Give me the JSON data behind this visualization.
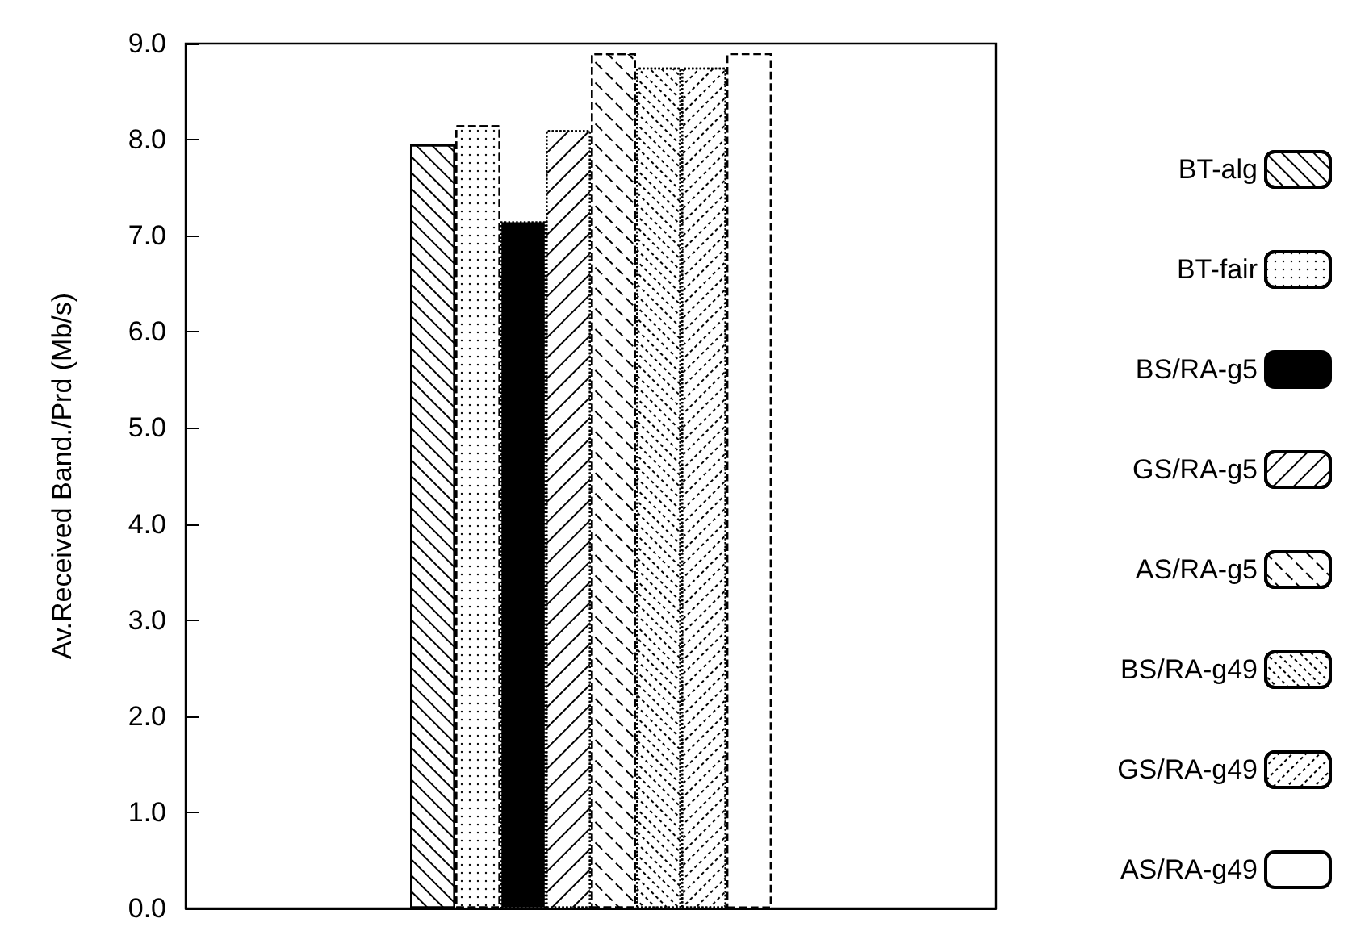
{
  "chart_data": {
    "type": "bar",
    "ylabel": "Av.Received Band./Prd (Mb/s)",
    "categories": [
      null
    ],
    "series": [
      {
        "name": "BT-alg",
        "color": "#ffffff",
        "values": [
          7.95
        ]
      },
      {
        "name": "BT-fair",
        "color": "#ffffff",
        "values": [
          8.15
        ]
      },
      {
        "name": "BS/RA-g5",
        "color": "#000000",
        "values": [
          7.15
        ]
      },
      {
        "name": "GS/RA-g5",
        "color": "#ffffff",
        "values": [
          8.1
        ]
      },
      {
        "name": "AS/RA-g5",
        "color": "#ffffff",
        "values": [
          8.9
        ]
      },
      {
        "name": "BS/RA-g49",
        "color": "#ffffff",
        "values": [
          8.75
        ]
      },
      {
        "name": "GS/RA-g49",
        "color": "#ffffff",
        "values": [
          8.75
        ]
      },
      {
        "name": "AS/RA-g49",
        "color": "#ffffff",
        "values": [
          8.9
        ]
      }
    ],
    "ylim": [
      0,
      9
    ],
    "yticks": [
      {
        "value": 0,
        "label": "0.0"
      },
      {
        "value": 1,
        "label": "1.0"
      },
      {
        "value": 2,
        "label": "2.0"
      },
      {
        "value": 3,
        "label": "3.0"
      },
      {
        "value": 4,
        "label": "4.0"
      },
      {
        "value": 5,
        "label": "5.0"
      },
      {
        "value": 6,
        "label": "6.0"
      },
      {
        "value": 7,
        "label": "7.0"
      },
      {
        "value": 8,
        "label": "8.0"
      },
      {
        "value": 9,
        "label": "9.0"
      }
    ],
    "grid": false,
    "legend": "right"
  }
}
